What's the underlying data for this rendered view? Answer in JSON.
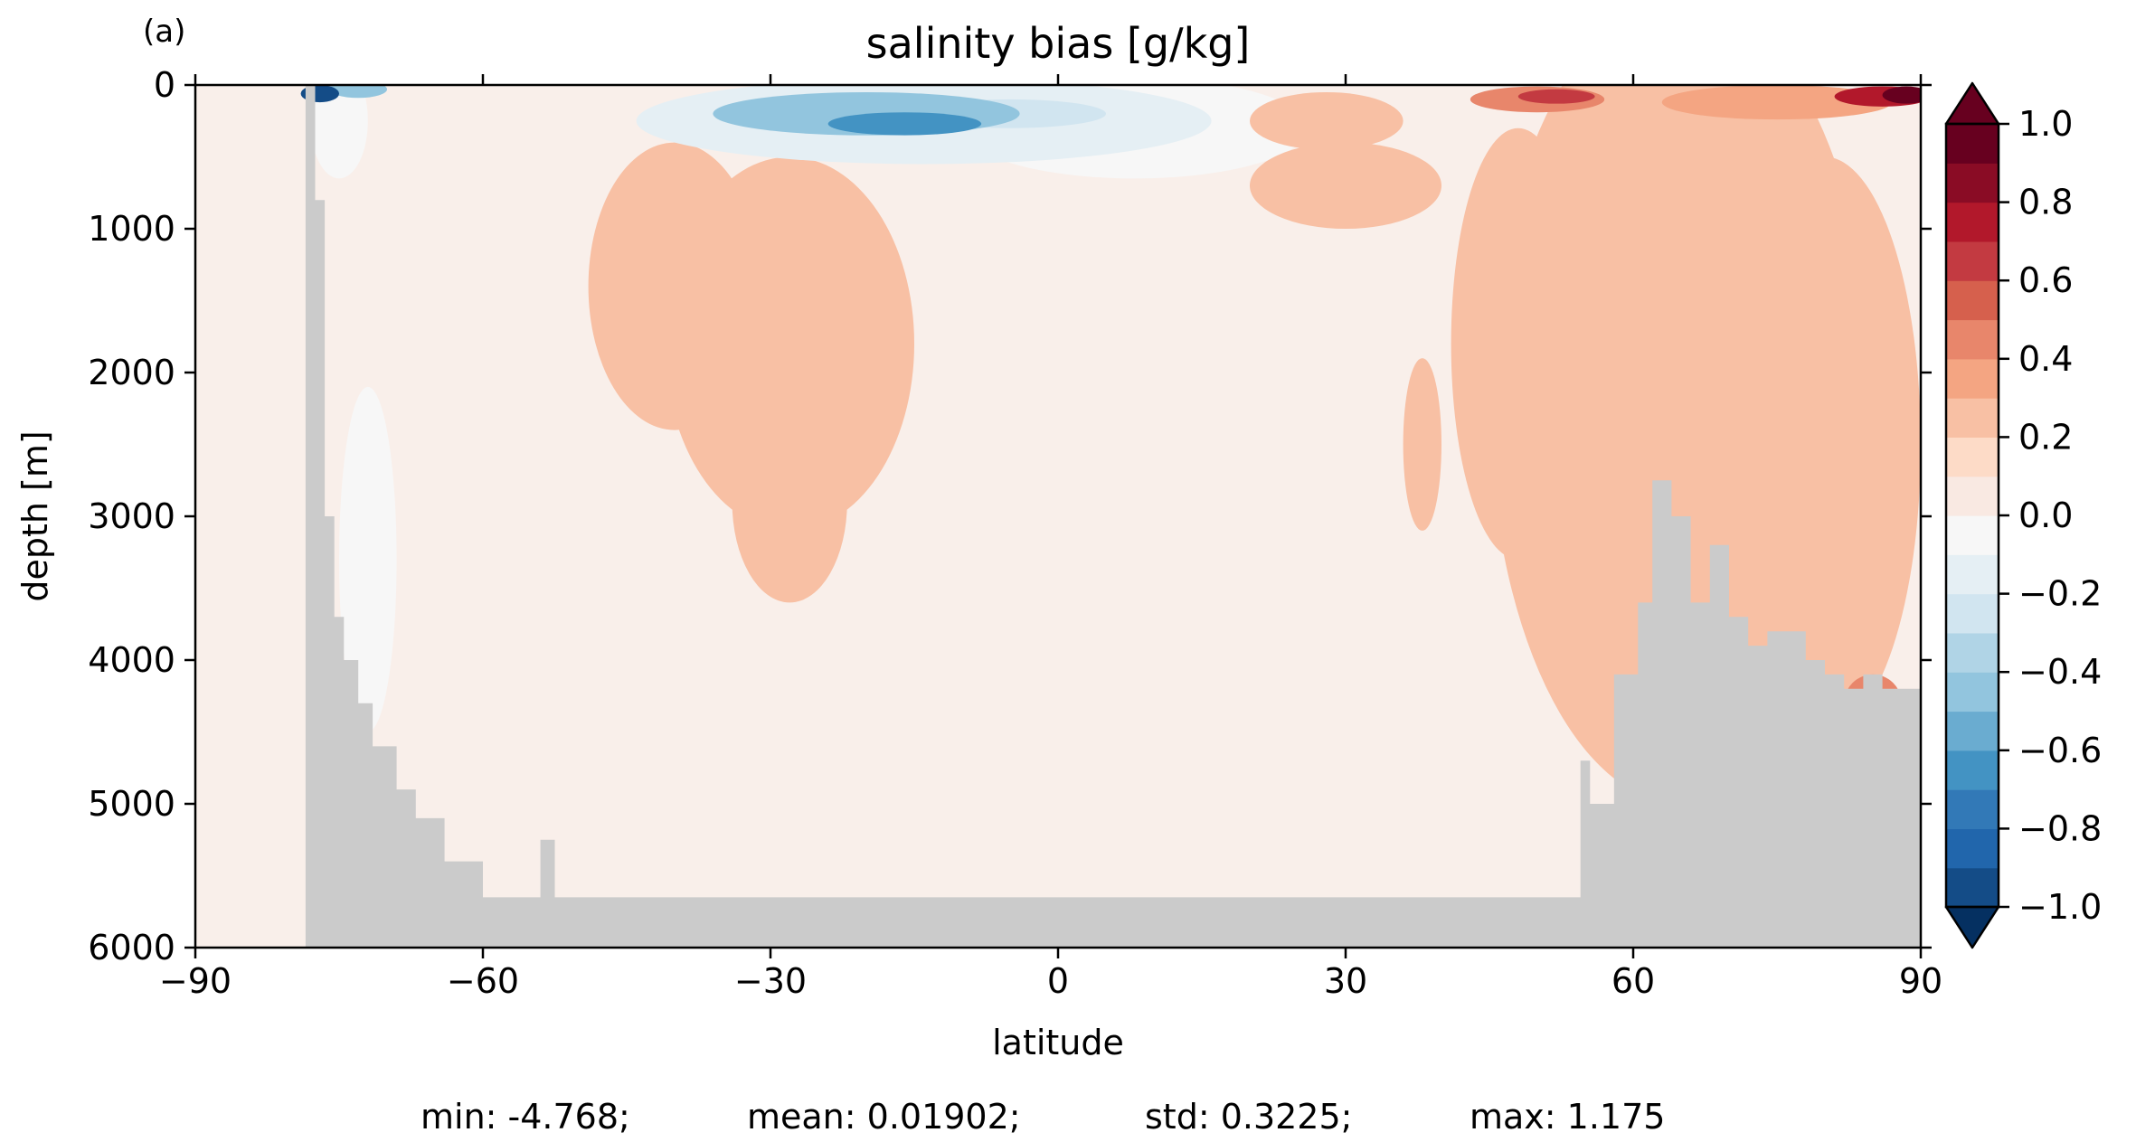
{
  "chart_data": {
    "type": "heatmap",
    "panel_label": "(a)",
    "title": "salinity bias [g/kg]",
    "xlabel": "latitude",
    "ylabel": "depth [m]",
    "xlim": [
      -90,
      90
    ],
    "ylim": [
      6000,
      0
    ],
    "x_ticks": [
      -90,
      -60,
      -30,
      0,
      30,
      60,
      90
    ],
    "x_tick_labels": [
      "−90",
      "−60",
      "−30",
      "0",
      "30",
      "60",
      "90"
    ],
    "y_ticks": [
      0,
      1000,
      2000,
      3000,
      4000,
      5000,
      6000
    ],
    "y_tick_labels": [
      "0",
      "1000",
      "2000",
      "3000",
      "4000",
      "5000",
      "6000"
    ],
    "colorbar": {
      "vmin": -1.0,
      "vmax": 1.0,
      "levels": 20,
      "extend": "both",
      "ticks": [
        1.0,
        0.8,
        0.6,
        0.4,
        0.2,
        0.0,
        -0.2,
        -0.4,
        -0.6,
        -0.8,
        -1.0
      ],
      "tick_labels": [
        "1.0",
        "0.8",
        "0.6",
        "0.4",
        "0.2",
        "0.0",
        "−0.2",
        "−0.4",
        "−0.6",
        "−0.8",
        "−1.0"
      ],
      "colors": [
        "#053061",
        "#144c87",
        "#2166ac",
        "#3279b7",
        "#4393c3",
        "#6aacd0",
        "#92c5de",
        "#b0d4e6",
        "#d1e5f0",
        "#e5eff4",
        "#f7f7f7",
        "#f9e9e2",
        "#fddbc7",
        "#f8c0a4",
        "#f4a582",
        "#e8866b",
        "#d6604d",
        "#c33a41",
        "#b2182b",
        "#8a0c25",
        "#67001f"
      ]
    },
    "land_color": "#cbcbcb",
    "bathymetry": {
      "lat": [
        -90,
        -78.5,
        -77.5,
        -76.5,
        -75.5,
        -74.5,
        -73,
        -71.5,
        -69,
        -67,
        -64,
        -60,
        -58,
        -56,
        -54,
        -52.5,
        -50,
        -45,
        -40,
        -20,
        0,
        20,
        40,
        53.5,
        54.5,
        55.5,
        58,
        60.5,
        62,
        64,
        66,
        68,
        70,
        72,
        74,
        76,
        78,
        80,
        82,
        84,
        86,
        90
      ],
      "depth": [
        6000,
        0,
        800,
        3000,
        3700,
        4000,
        4300,
        4600,
        4900,
        5100,
        5400,
        5650,
        5650,
        5650,
        5250,
        5650,
        5650,
        5650,
        5650,
        5650,
        5650,
        5650,
        5650,
        5650,
        4700,
        5000,
        4100,
        3600,
        2750,
        3000,
        3600,
        3200,
        3700,
        3900,
        3800,
        3800,
        4000,
        4100,
        4200,
        4100,
        4200,
        4500
      ]
    },
    "anomalies": [
      {
        "lat": -77,
        "depth": 60,
        "rlat": 2.0,
        "rdepth": 60,
        "value": -1.0
      },
      {
        "lat": -73,
        "depth": 30,
        "rlat": 3.0,
        "rdepth": 60,
        "value": -0.5
      },
      {
        "lat": -75,
        "depth": 250,
        "rlat": 3.0,
        "rdepth": 400,
        "value": -0.1
      },
      {
        "lat": -72,
        "depth": 3300,
        "rlat": 3.0,
        "rdepth": 1200,
        "value": -0.05
      },
      {
        "lat": -28,
        "depth": 1800,
        "rlat": 13.0,
        "rdepth": 1300,
        "value": 0.2
      },
      {
        "lat": -40,
        "depth": 1400,
        "rlat": 9.0,
        "rdepth": 1000,
        "value": 0.2
      },
      {
        "lat": -28,
        "depth": 2900,
        "rlat": 6.0,
        "rdepth": 700,
        "value": 0.2
      },
      {
        "lat": -14,
        "depth": 250,
        "rlat": 30.0,
        "rdepth": 300,
        "value": -0.2
      },
      {
        "lat": -20,
        "depth": 200,
        "rlat": 16.0,
        "rdepth": 150,
        "value": -0.45
      },
      {
        "lat": -16,
        "depth": 270,
        "rlat": 8.0,
        "rdepth": 80,
        "value": -0.7
      },
      {
        "lat": 8,
        "depth": 300,
        "rlat": 18.0,
        "rdepth": 350,
        "value": -0.1
      },
      {
        "lat": -5,
        "depth": 200,
        "rlat": 10.0,
        "rdepth": 100,
        "value": -0.3
      },
      {
        "lat": 30,
        "depth": 700,
        "rlat": 10.0,
        "rdepth": 300,
        "value": 0.25
      },
      {
        "lat": 28,
        "depth": 250,
        "rlat": 8.0,
        "rdepth": 200,
        "value": 0.2
      },
      {
        "lat": 65,
        "depth": 2200,
        "rlat": 20.0,
        "rdepth": 2800,
        "value": 0.2
      },
      {
        "lat": 80,
        "depth": 2500,
        "rlat": 10.0,
        "rdepth": 2000,
        "value": 0.25
      },
      {
        "lat": 48,
        "depth": 1800,
        "rlat": 7.0,
        "rdepth": 1500,
        "value": 0.2
      },
      {
        "lat": 38,
        "depth": 2500,
        "rlat": 2.0,
        "rdepth": 600,
        "value": 0.2
      },
      {
        "lat": 50,
        "depth": 100,
        "rlat": 7.0,
        "rdepth": 90,
        "value": 0.45
      },
      {
        "lat": 52,
        "depth": 80,
        "rlat": 4.0,
        "rdepth": 50,
        "value": 0.6
      },
      {
        "lat": 75,
        "depth": 120,
        "rlat": 12.0,
        "rdepth": 120,
        "value": 0.3
      },
      {
        "lat": 86,
        "depth": 80,
        "rlat": 5.0,
        "rdepth": 70,
        "value": 0.7
      },
      {
        "lat": 88.5,
        "depth": 70,
        "rlat": 2.5,
        "rdepth": 60,
        "value": 1.0
      },
      {
        "lat": 85,
        "depth": 4300,
        "rlat": 3.0,
        "rdepth": 200,
        "value": 0.4
      }
    ],
    "stats": {
      "min_label": "min: -4.768;",
      "mean_label": "mean: 0.01902;",
      "std_label": "std: 0.3225;",
      "max_label": "max: 1.175"
    }
  }
}
